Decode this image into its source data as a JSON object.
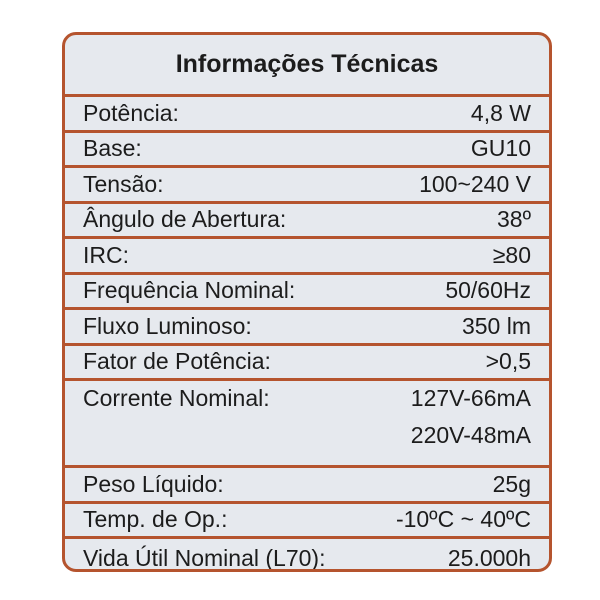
{
  "title": "Informações Técnicas",
  "rows": [
    {
      "label": "Potência:",
      "value": "4,8 W"
    },
    {
      "label": "Base:",
      "value": "GU10"
    },
    {
      "label": "Tensão:",
      "value": "100~240 V"
    },
    {
      "label": "Ângulo de Abertura:",
      "value": "38º"
    },
    {
      "label": "IRC:",
      "value": "≥80"
    },
    {
      "label": "Frequência Nominal:",
      "value": "50/60Hz"
    },
    {
      "label": "Fluxo Luminoso:",
      "value": "350 lm"
    },
    {
      "label": "Fator de Potência:",
      "value": ">0,5"
    },
    {
      "label": "Corrente Nominal:",
      "values": [
        "127V-66mA",
        "220V-48mA"
      ]
    },
    {
      "label": "Peso Líquido:",
      "value": "25g"
    },
    {
      "label": "Temp. de Op.:",
      "value": "-10ºC ~ 40ºC"
    },
    {
      "label": "Vida Útil Nominal (L70):",
      "value": "25.000h"
    }
  ],
  "colors": {
    "border": "#b5542e",
    "background": "#e6e9ee",
    "text": "#1c1c1c"
  }
}
